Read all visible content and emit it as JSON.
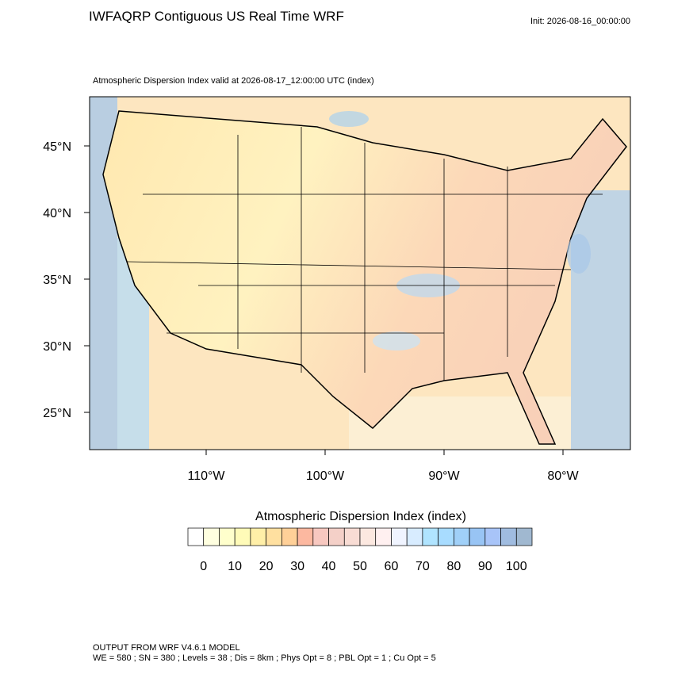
{
  "header": {
    "title": "IWFAQRP Contiguous US Real Time WRF",
    "init": "Init: 2026-08-16_00:00:00",
    "subtitle": "Atmospheric Dispersion Index valid at 2026-08-17_12:00:00 UTC   (index)"
  },
  "map": {
    "lat_labels": [
      {
        "value": 45,
        "label": "45°N"
      },
      {
        "value": 40,
        "label": "40°N"
      },
      {
        "value": 35,
        "label": "35°N"
      },
      {
        "value": 30,
        "label": "30°N"
      },
      {
        "value": 25,
        "label": "25°N"
      }
    ],
    "lon_labels": [
      {
        "value": -110,
        "label": "110°W"
      },
      {
        "value": -100,
        "label": "100°W"
      },
      {
        "value": -90,
        "label": "90°W"
      },
      {
        "value": -80,
        "label": "80°W"
      }
    ]
  },
  "colorbar": {
    "title": "Atmospheric Dispersion Index  (index)",
    "ticks": [
      0,
      10,
      20,
      30,
      40,
      50,
      60,
      70,
      80,
      90,
      100
    ],
    "colors": [
      "#ffffff",
      "#ffffe0",
      "#ffffcc",
      "#fffbb8",
      "#ffefa8",
      "#ffe0a0",
      "#ffd098",
      "#fcb8a0",
      "#f8c8c0",
      "#f4d0c8",
      "#f8dcd4",
      "#fce8e0",
      "#fff0f0",
      "#f0f4ff",
      "#d8ecff",
      "#b0e4ff",
      "#a8dcff",
      "#a0d0f8",
      "#98c4f4",
      "#a8c4f8",
      "#a0bce0",
      "#a0b8d0"
    ]
  },
  "footer": {
    "line1": "OUTPUT FROM WRF V4.6.1 MODEL",
    "line2": "WE = 580 ; SN = 380 ; Levels = 38 ; Dis = 8km ; Phys Opt = 8 ; PBL Opt = 1 ; Cu Opt = 5"
  }
}
